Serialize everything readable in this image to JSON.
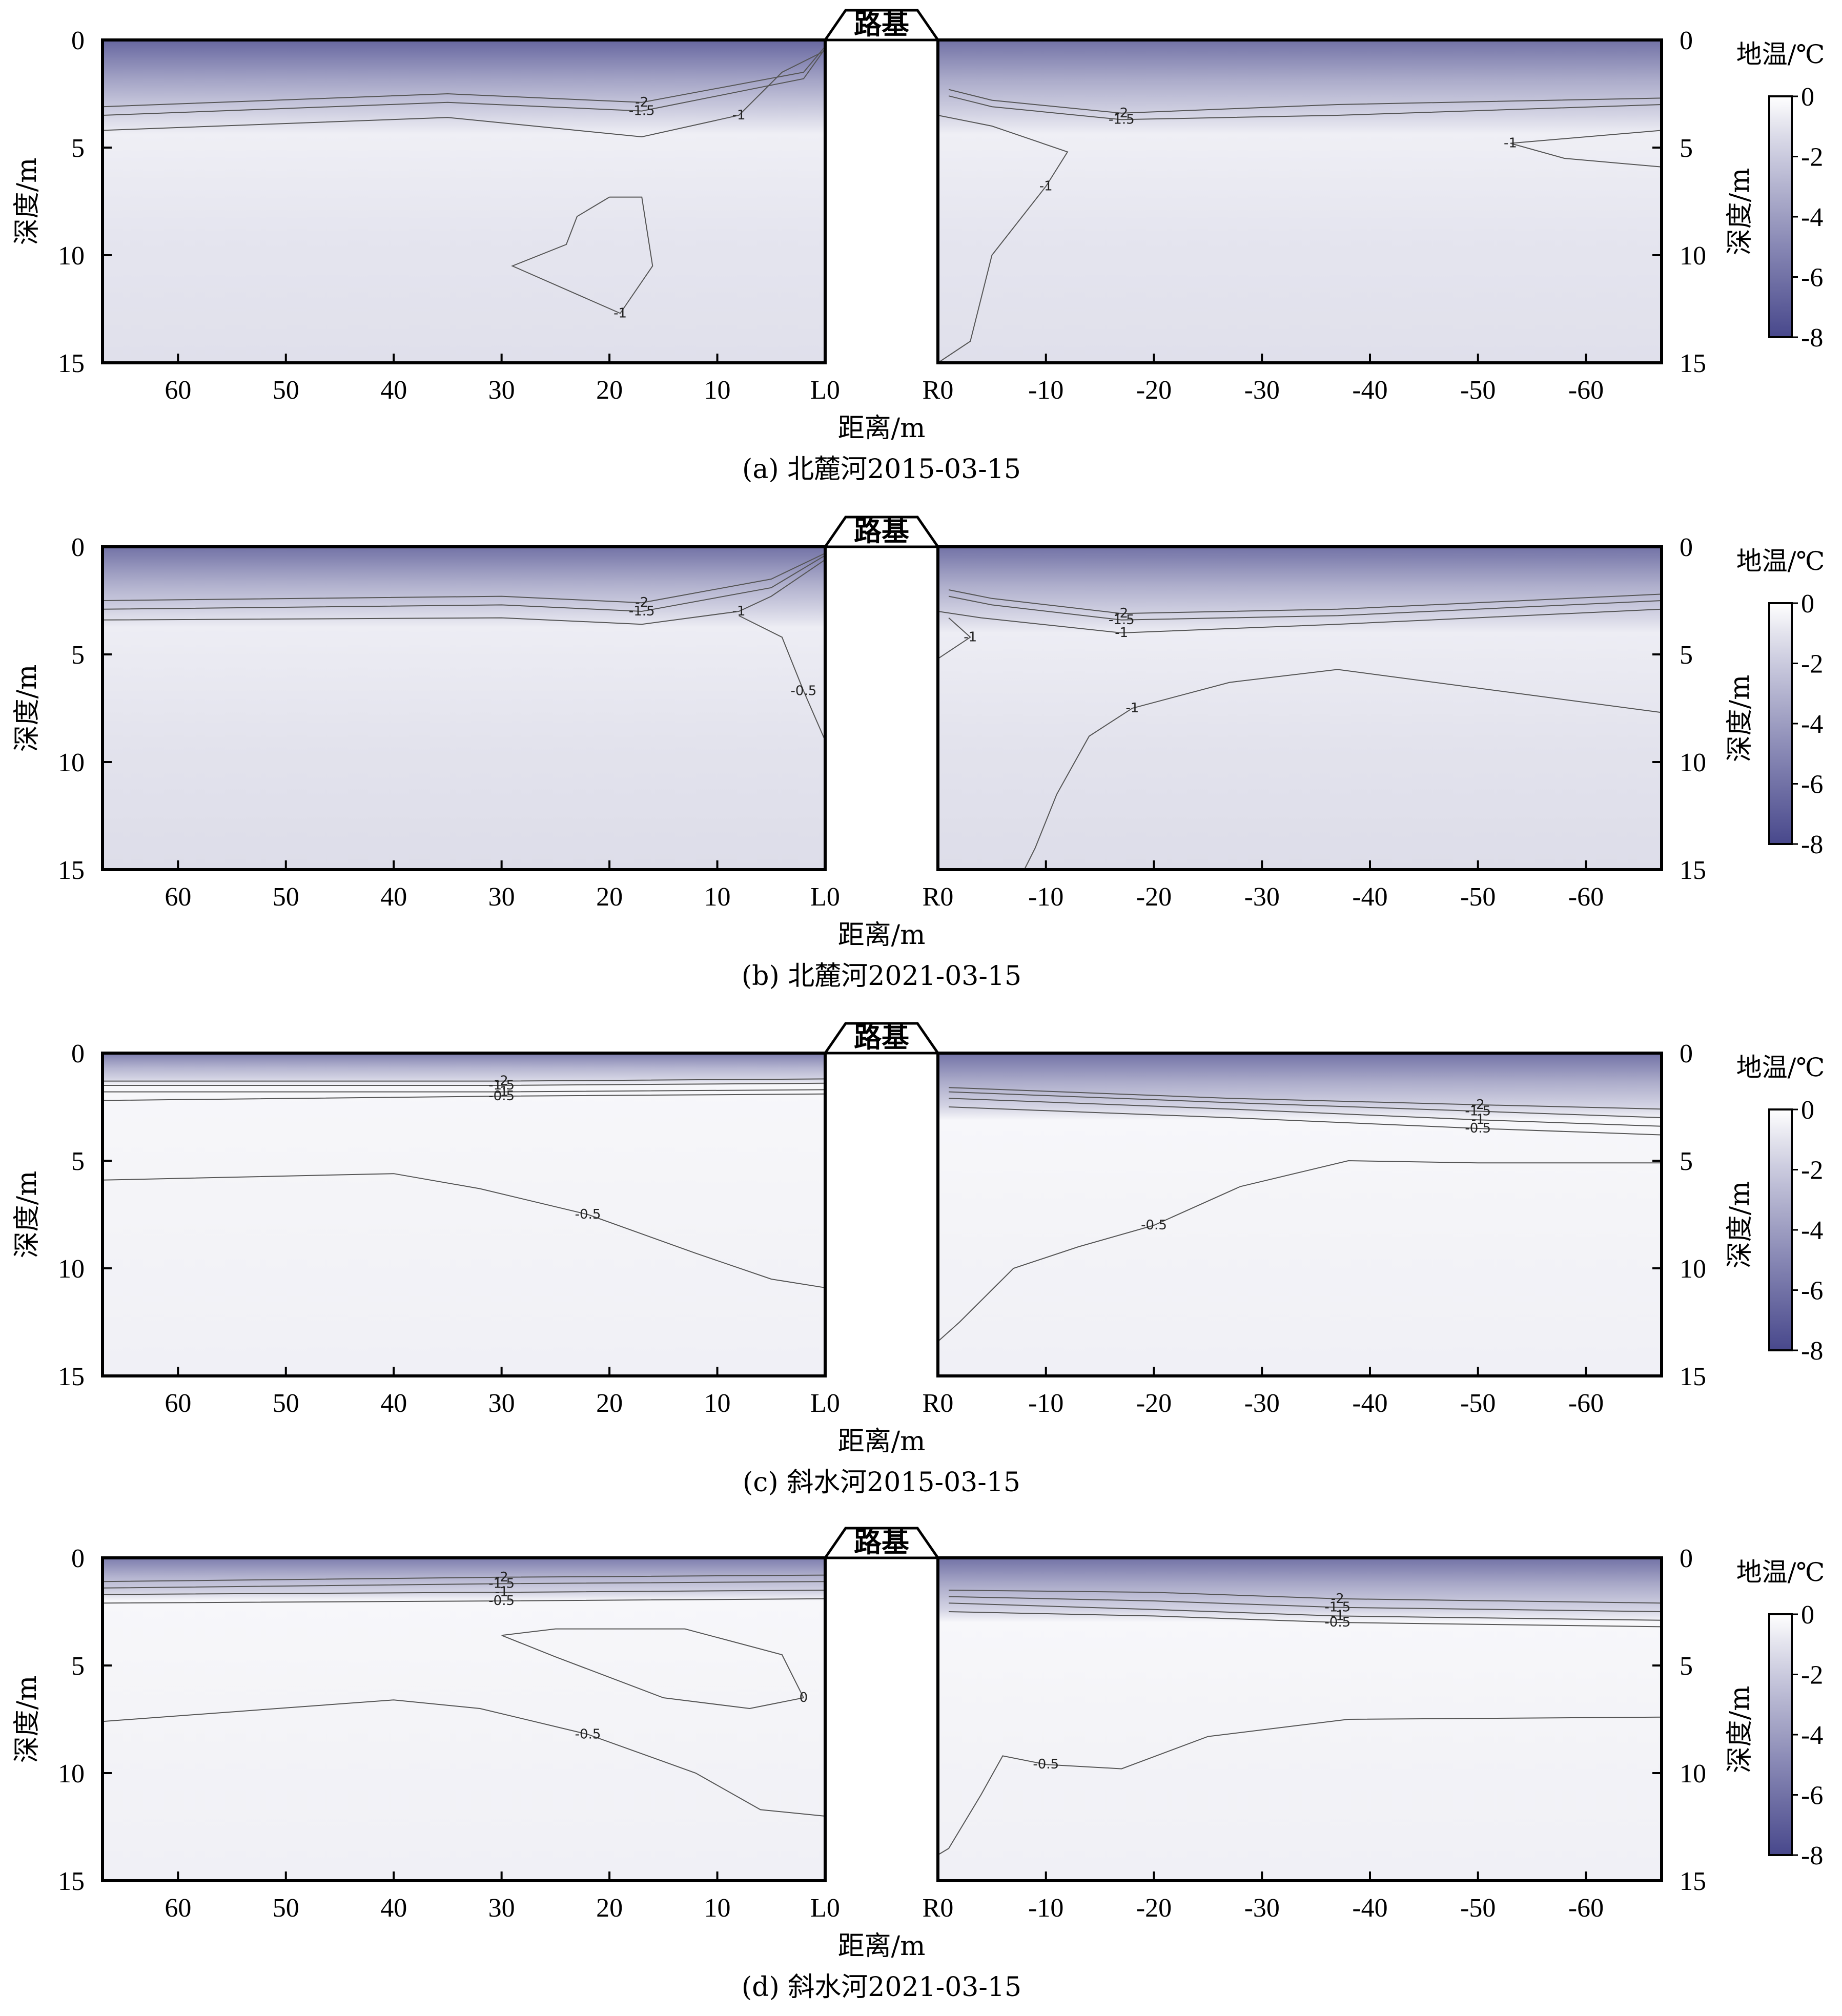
{
  "chart_data": [
    {
      "type": "heatmap",
      "caption": "(a) 北麓河2015-03-15",
      "embankment_label": "路基",
      "xlabel": "距离/m",
      "ylabel_left": "深度/m",
      "ylabel_right": "深度/m",
      "colorbar_title": "地温/℃",
      "colorbar_ticks": [
        "0",
        "-2",
        "-4",
        "-6",
        "-8"
      ],
      "colorbar_range": [
        -8,
        0
      ],
      "left_xticks": [
        "60",
        "50",
        "40",
        "30",
        "20",
        "10",
        "L0"
      ],
      "right_xticks": [
        "R0",
        "-10",
        "-20",
        "-30",
        "-40",
        "-50",
        "-60"
      ],
      "yticks": [
        "0",
        "5",
        "10",
        "15"
      ],
      "ylim": [
        0,
        15
      ],
      "left_surface": {
        "min_temp": -6.5,
        "warm_depth": 3.5
      },
      "right_surface": {
        "min_temp": -6.0,
        "warm_depth": 3.5
      },
      "contours_left": [
        {
          "label": "-2",
          "points": [
            [
              67,
              3.1
            ],
            [
              35,
              2.5
            ],
            [
              17,
              2.9
            ],
            [
              2,
              1.5
            ],
            [
              0,
              0.3
            ]
          ]
        },
        {
          "label": "-1.5",
          "points": [
            [
              67,
              3.5
            ],
            [
              35,
              2.9
            ],
            [
              17,
              3.3
            ],
            [
              2,
              1.8
            ],
            [
              0,
              0.4
            ]
          ]
        },
        {
          "label": "-1",
          "points": [
            [
              67,
              4.2
            ],
            [
              35,
              3.6
            ],
            [
              17,
              4.5
            ],
            [
              8,
              3.5
            ],
            [
              4,
              1.5
            ],
            [
              0,
              0.5
            ]
          ]
        },
        {
          "label": "-1",
          "points": [
            [
              20,
              7.3
            ],
            [
              23,
              8.2
            ],
            [
              24,
              9.5
            ],
            [
              29,
              10.5
            ],
            [
              19,
              12.7
            ],
            [
              16,
              10.5
            ],
            [
              17,
              7.3
            ],
            [
              20,
              7.3
            ]
          ]
        }
      ],
      "contours_right": [
        {
          "label": "-2",
          "points": [
            [
              1,
              2.3
            ],
            [
              5,
              2.8
            ],
            [
              17,
              3.4
            ],
            [
              37,
              3.0
            ],
            [
              67,
              2.7
            ]
          ]
        },
        {
          "label": "-1.5",
          "points": [
            [
              1,
              2.6
            ],
            [
              5,
              3.1
            ],
            [
              17,
              3.7
            ],
            [
              37,
              3.5
            ],
            [
              67,
              3.0
            ]
          ]
        },
        {
          "label": "-1",
          "points": [
            [
              0,
              3.5
            ],
            [
              5,
              4.0
            ],
            [
              12,
              5.2
            ],
            [
              10,
              6.8
            ],
            [
              5,
              10.0
            ],
            [
              3,
              14.0
            ],
            [
              0,
              15.0
            ]
          ]
        },
        {
          "label": "-1",
          "points": [
            [
              67,
              5.9
            ],
            [
              58,
              5.5
            ],
            [
              53,
              4.8
            ],
            [
              67,
              4.2
            ]
          ]
        }
      ]
    },
    {
      "type": "heatmap",
      "caption": "(b) 北麓河2021-03-15",
      "embankment_label": "路基",
      "xlabel": "距离/m",
      "ylabel_left": "深度/m",
      "ylabel_right": "深度/m",
      "colorbar_title": "地温/℃",
      "colorbar_ticks": [
        "0",
        "-2",
        "-4",
        "-6",
        "-8"
      ],
      "colorbar_range": [
        -8,
        0
      ],
      "left_xticks": [
        "60",
        "50",
        "40",
        "30",
        "20",
        "10",
        "L0"
      ],
      "right_xticks": [
        "R0",
        "-10",
        "-20",
        "-30",
        "-40",
        "-50",
        "-60"
      ],
      "yticks": [
        "0",
        "5",
        "10",
        "15"
      ],
      "ylim": [
        0,
        15
      ],
      "left_surface": {
        "min_temp": -6.0,
        "warm_depth": 3.0
      },
      "right_surface": {
        "min_temp": -6.0,
        "warm_depth": 3.2
      },
      "contours_left": [
        {
          "label": "-2",
          "points": [
            [
              67,
              2.5
            ],
            [
              30,
              2.3
            ],
            [
              17,
              2.6
            ],
            [
              5,
              1.5
            ],
            [
              0,
              0.3
            ]
          ]
        },
        {
          "label": "-1.5",
          "points": [
            [
              67,
              2.9
            ],
            [
              30,
              2.7
            ],
            [
              17,
              3.0
            ],
            [
              5,
              1.9
            ],
            [
              0,
              0.4
            ]
          ]
        },
        {
          "label": "-1",
          "points": [
            [
              67,
              3.4
            ],
            [
              30,
              3.3
            ],
            [
              17,
              3.6
            ],
            [
              8,
              3.0
            ],
            [
              5,
              2.3
            ],
            [
              0,
              0.6
            ]
          ]
        },
        {
          "label": "-0.5",
          "points": [
            [
              8,
              3.2
            ],
            [
              4,
              4.2
            ],
            [
              2,
              6.7
            ],
            [
              0,
              9.0
            ]
          ]
        }
      ],
      "contours_right": [
        {
          "label": "-2",
          "points": [
            [
              1,
              2.0
            ],
            [
              5,
              2.4
            ],
            [
              17,
              3.1
            ],
            [
              37,
              2.9
            ],
            [
              67,
              2.2
            ]
          ]
        },
        {
          "label": "-1.5",
          "points": [
            [
              1,
              2.3
            ],
            [
              5,
              2.7
            ],
            [
              17,
              3.4
            ],
            [
              37,
              3.2
            ],
            [
              67,
              2.5
            ]
          ]
        },
        {
          "label": "-1",
          "points": [
            [
              0,
              3.0
            ],
            [
              4,
              3.3
            ],
            [
              17,
              4.0
            ],
            [
              37,
              3.6
            ],
            [
              67,
              2.9
            ]
          ]
        },
        {
          "label": "-1",
          "points": [
            [
              0,
              5.2
            ],
            [
              3,
              4.2
            ],
            [
              1,
              3.3
            ]
          ]
        },
        {
          "label": "-1",
          "points": [
            [
              67,
              7.7
            ],
            [
              55,
              6.9
            ],
            [
              37,
              5.7
            ],
            [
              27,
              6.3
            ],
            [
              18,
              7.5
            ],
            [
              14,
              8.8
            ],
            [
              11,
              11.5
            ],
            [
              9,
              14.0
            ],
            [
              8,
              15.0
            ]
          ]
        }
      ]
    },
    {
      "type": "heatmap",
      "caption": "(c) 斜水河2015-03-15",
      "embankment_label": "路基",
      "xlabel": "距离/m",
      "ylabel_left": "深度/m",
      "ylabel_right": "深度/m",
      "colorbar_title": "地温/℃",
      "colorbar_ticks": [
        "0",
        "-2",
        "-4",
        "-6",
        "-8"
      ],
      "colorbar_range": [
        -8,
        0
      ],
      "left_xticks": [
        "60",
        "50",
        "40",
        "30",
        "20",
        "10",
        "L0"
      ],
      "right_xticks": [
        "R0",
        "-10",
        "-20",
        "-30",
        "-40",
        "-50",
        "-60"
      ],
      "yticks": [
        "0",
        "5",
        "10",
        "15"
      ],
      "ylim": [
        0,
        15
      ],
      "left_surface": {
        "min_temp": -5.5,
        "warm_depth": 1.2
      },
      "right_surface": {
        "min_temp": -6.0,
        "warm_depth": 2.5
      },
      "contours_left": [
        {
          "label": "-2",
          "points": [
            [
              67,
              1.3
            ],
            [
              30,
              1.3
            ],
            [
              0,
              1.2
            ]
          ]
        },
        {
          "label": "-1.5",
          "points": [
            [
              67,
              1.5
            ],
            [
              30,
              1.5
            ],
            [
              0,
              1.4
            ]
          ]
        },
        {
          "label": "-1",
          "points": [
            [
              67,
              1.8
            ],
            [
              30,
              1.8
            ],
            [
              0,
              1.7
            ]
          ]
        },
        {
          "label": "-0.5",
          "points": [
            [
              67,
              2.2
            ],
            [
              30,
              2.0
            ],
            [
              0,
              1.9
            ]
          ]
        },
        {
          "label": "-0.5",
          "points": [
            [
              67,
              5.9
            ],
            [
              40,
              5.6
            ],
            [
              32,
              6.3
            ],
            [
              22,
              7.5
            ],
            [
              12,
              9.3
            ],
            [
              5,
              10.5
            ],
            [
              0,
              10.9
            ]
          ]
        }
      ],
      "contours_right": [
        {
          "label": "-2",
          "points": [
            [
              1,
              1.6
            ],
            [
              27,
              2.1
            ],
            [
              50,
              2.4
            ],
            [
              67,
              2.6
            ]
          ]
        },
        {
          "label": "-1.5",
          "points": [
            [
              1,
              1.8
            ],
            [
              27,
              2.3
            ],
            [
              50,
              2.7
            ],
            [
              67,
              3.0
            ]
          ]
        },
        {
          "label": "-1",
          "points": [
            [
              1,
              2.1
            ],
            [
              27,
              2.6
            ],
            [
              50,
              3.1
            ],
            [
              67,
              3.4
            ]
          ]
        },
        {
          "label": "-0.5",
          "points": [
            [
              1,
              2.5
            ],
            [
              27,
              3.0
            ],
            [
              50,
              3.5
            ],
            [
              67,
              3.8
            ]
          ]
        },
        {
          "label": "-0.5",
          "points": [
            [
              67,
              5.1
            ],
            [
              50,
              5.1
            ],
            [
              38,
              5.0
            ],
            [
              28,
              6.2
            ],
            [
              20,
              8.0
            ],
            [
              13,
              9.0
            ],
            [
              7,
              10.0
            ],
            [
              2,
              12.5
            ],
            [
              0,
              13.4
            ]
          ]
        }
      ]
    },
    {
      "type": "heatmap",
      "caption": "(d) 斜水河2021-03-15",
      "embankment_label": "路基",
      "xlabel": "距离/m",
      "ylabel_left": "深度/m",
      "ylabel_right": "深度/m",
      "colorbar_title": "地温/℃",
      "colorbar_ticks": [
        "0",
        "-2",
        "-4",
        "-6",
        "-8"
      ],
      "colorbar_range": [
        -8,
        0
      ],
      "left_xticks": [
        "60",
        "50",
        "40",
        "30",
        "20",
        "10",
        "L0"
      ],
      "right_xticks": [
        "R0",
        "-10",
        "-20",
        "-30",
        "-40",
        "-50",
        "-60"
      ],
      "yticks": [
        "0",
        "5",
        "10",
        "15"
      ],
      "ylim": [
        0,
        15
      ],
      "left_surface": {
        "min_temp": -5.5,
        "warm_depth": 1.6
      },
      "right_surface": {
        "min_temp": -6.0,
        "warm_depth": 2.4
      },
      "contours_left": [
        {
          "label": "-2",
          "points": [
            [
              67,
              1.1
            ],
            [
              30,
              0.9
            ],
            [
              0,
              0.8
            ]
          ]
        },
        {
          "label": "-1.5",
          "points": [
            [
              67,
              1.4
            ],
            [
              30,
              1.2
            ],
            [
              0,
              1.1
            ]
          ]
        },
        {
          "label": "-1",
          "points": [
            [
              67,
              1.7
            ],
            [
              30,
              1.6
            ],
            [
              0,
              1.5
            ]
          ]
        },
        {
          "label": "-0.5",
          "points": [
            [
              67,
              2.1
            ],
            [
              30,
              2.0
            ],
            [
              0,
              1.9
            ]
          ]
        },
        {
          "label": "0",
          "points": [
            [
              30,
              3.6
            ],
            [
              25,
              3.3
            ],
            [
              13,
              3.3
            ],
            [
              4,
              4.5
            ],
            [
              2,
              6.5
            ],
            [
              7,
              7.0
            ],
            [
              15,
              6.5
            ],
            [
              25,
              4.6
            ],
            [
              30,
              3.6
            ]
          ]
        },
        {
          "label": "-0.5",
          "points": [
            [
              67,
              7.6
            ],
            [
              40,
              6.6
            ],
            [
              32,
              7.0
            ],
            [
              22,
              8.2
            ],
            [
              12,
              10.0
            ],
            [
              6,
              11.7
            ],
            [
              0,
              12.0
            ]
          ]
        }
      ],
      "contours_right": [
        {
          "label": "-2",
          "points": [
            [
              1,
              1.5
            ],
            [
              20,
              1.6
            ],
            [
              37,
              1.9
            ],
            [
              67,
              2.1
            ]
          ]
        },
        {
          "label": "-1.5",
          "points": [
            [
              1,
              1.8
            ],
            [
              20,
              2.0
            ],
            [
              37,
              2.3
            ],
            [
              67,
              2.5
            ]
          ]
        },
        {
          "label": "-1",
          "points": [
            [
              1,
              2.1
            ],
            [
              20,
              2.4
            ],
            [
              37,
              2.7
            ],
            [
              67,
              2.9
            ]
          ]
        },
        {
          "label": "-0.5",
          "points": [
            [
              1,
              2.5
            ],
            [
              20,
              2.7
            ],
            [
              37,
              3.0
            ],
            [
              67,
              3.2
            ]
          ]
        },
        {
          "label": "-0.5",
          "points": [
            [
              67,
              7.4
            ],
            [
              38,
              7.5
            ],
            [
              25,
              8.3
            ],
            [
              17,
              9.8
            ],
            [
              10,
              9.6
            ],
            [
              6,
              9.2
            ],
            [
              4,
              11.0
            ],
            [
              1,
              13.5
            ],
            [
              0,
              13.8
            ]
          ]
        }
      ]
    }
  ]
}
